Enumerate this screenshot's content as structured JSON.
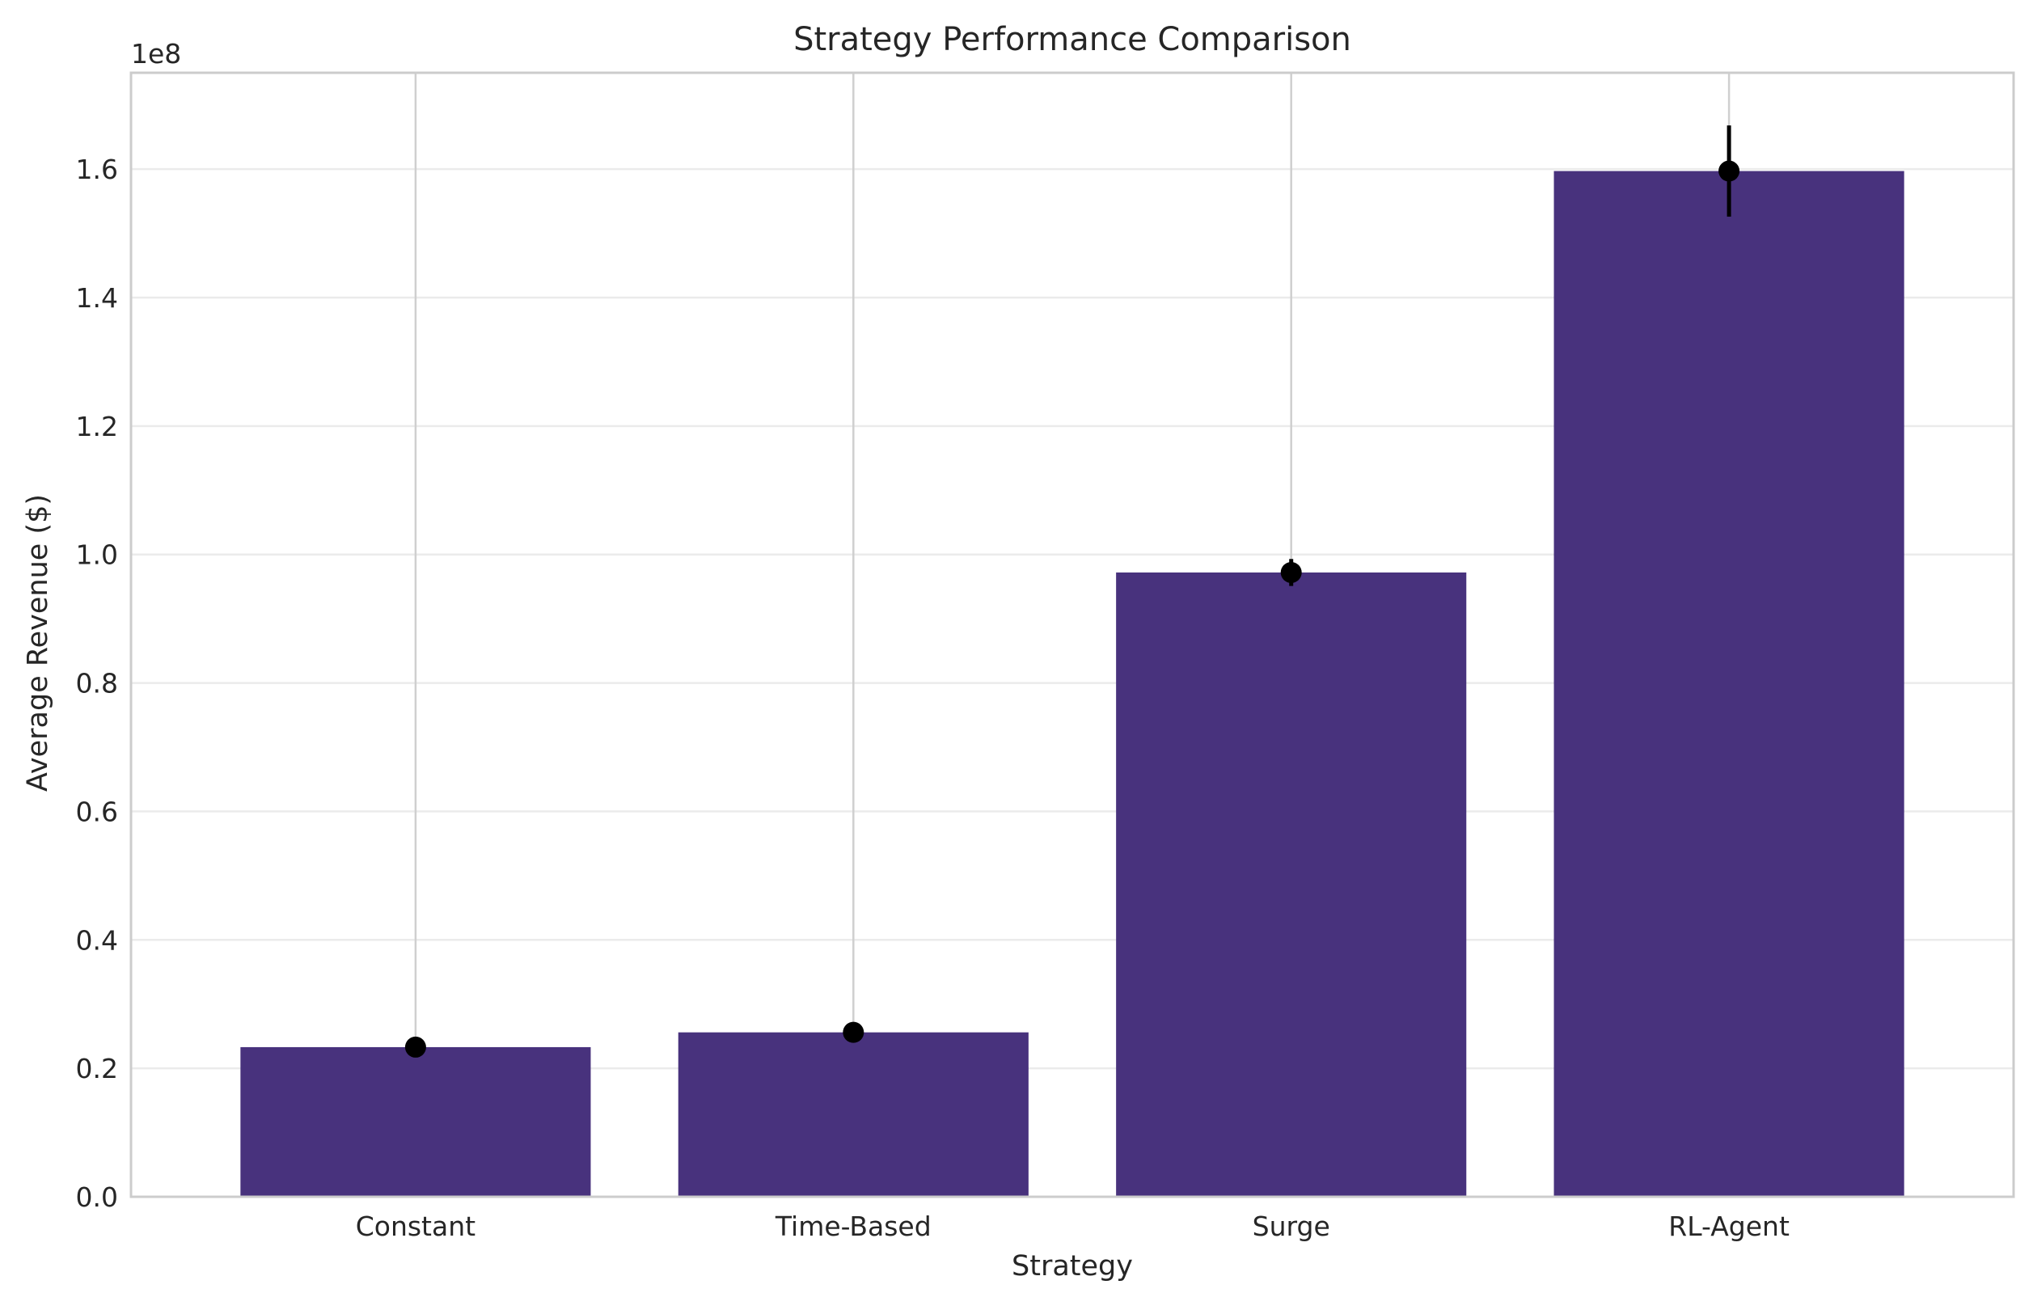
{
  "chart_data": {
    "type": "bar",
    "title": "Strategy Performance Comparison",
    "xlabel": "Strategy",
    "ylabel": "Average Revenue ($)",
    "y_offset_label": "1e8",
    "categories": [
      "Constant",
      "Time-Based",
      "Surge",
      "RL-Agent"
    ],
    "values": [
      23300000,
      25600000,
      97200000,
      159700000
    ],
    "errors": [
      300000,
      300000,
      2100000,
      7100000
    ],
    "ylim": [
      0,
      175000000
    ],
    "y_ticks": [
      0,
      20000000,
      40000000,
      60000000,
      80000000,
      100000000,
      120000000,
      140000000,
      160000000
    ],
    "y_tick_labels": [
      "0.0",
      "0.2",
      "0.4",
      "0.6",
      "0.8",
      "1.0",
      "1.2",
      "1.4",
      "1.6"
    ],
    "grid": "y",
    "bar_color": "#48327d",
    "marker_color": "#000000"
  }
}
